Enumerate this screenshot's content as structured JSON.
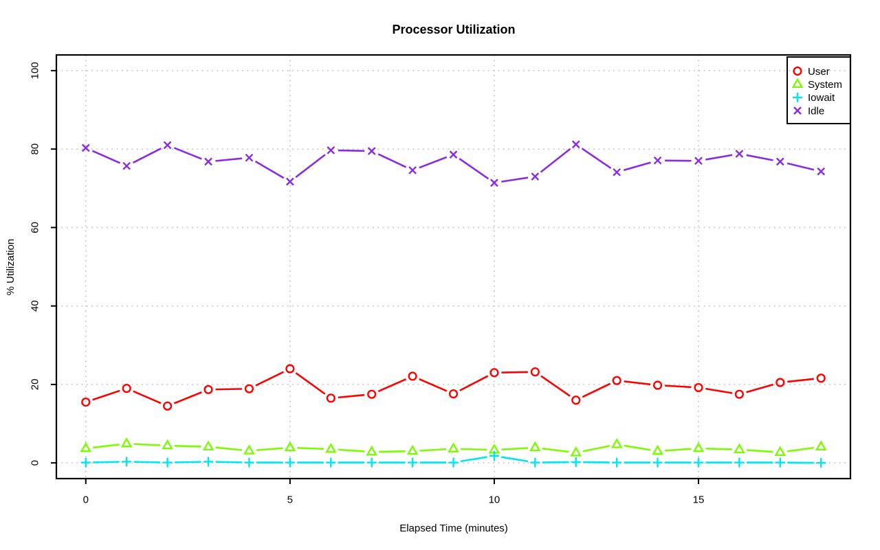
{
  "chart_data": {
    "type": "line",
    "title": "Processor Utilization",
    "xlabel": "Elapsed Time (minutes)",
    "ylabel": "% Utilization",
    "xlim": [
      0,
      18
    ],
    "ylim": [
      0,
      100
    ],
    "x_ticks": [
      0,
      5,
      10,
      15
    ],
    "y_ticks": [
      0,
      20,
      40,
      60,
      80,
      100
    ],
    "grid": true,
    "grid_style": "dotted",
    "grid_color": "#c8c8c8",
    "frame_color": "#000000",
    "legend_position": "top-right-inside",
    "x": [
      0,
      1,
      2,
      3,
      4,
      5,
      6,
      7,
      8,
      9,
      10,
      11,
      12,
      13,
      14,
      15,
      16,
      17,
      18
    ],
    "series": [
      {
        "name": "User",
        "marker": "circle",
        "color": "#ff0000",
        "values": [
          15.5,
          19.0,
          14.5,
          18.7,
          18.9,
          24.0,
          16.5,
          17.5,
          22.1,
          17.6,
          23.0,
          23.2,
          16.0,
          21.0,
          19.8,
          19.2,
          17.5,
          20.5,
          21.6
        ]
      },
      {
        "name": "System",
        "marker": "triangle",
        "color": "#7cfc00",
        "values": [
          3.7,
          4.9,
          4.4,
          4.1,
          3.1,
          3.9,
          3.5,
          2.8,
          3.0,
          3.6,
          3.3,
          3.9,
          2.6,
          4.7,
          3.0,
          3.7,
          3.4,
          2.7,
          4.1
        ]
      },
      {
        "name": "Iowait",
        "marker": "plus",
        "color": "#00e5ee",
        "values": [
          0.1,
          0.3,
          0.1,
          0.3,
          0.1,
          0.1,
          0.1,
          0.1,
          0.1,
          0.1,
          1.8,
          0.1,
          0.2,
          0.1,
          0.1,
          0.1,
          0.1,
          0.1,
          0.0
        ]
      },
      {
        "name": "Idle",
        "marker": "x",
        "color": "#8a2be2",
        "values": [
          80.3,
          75.7,
          81.0,
          76.8,
          77.8,
          71.7,
          79.7,
          79.5,
          74.6,
          78.6,
          71.4,
          73.0,
          81.2,
          74.1,
          77.1,
          77.0,
          78.8,
          76.8,
          74.3
        ]
      }
    ]
  }
}
